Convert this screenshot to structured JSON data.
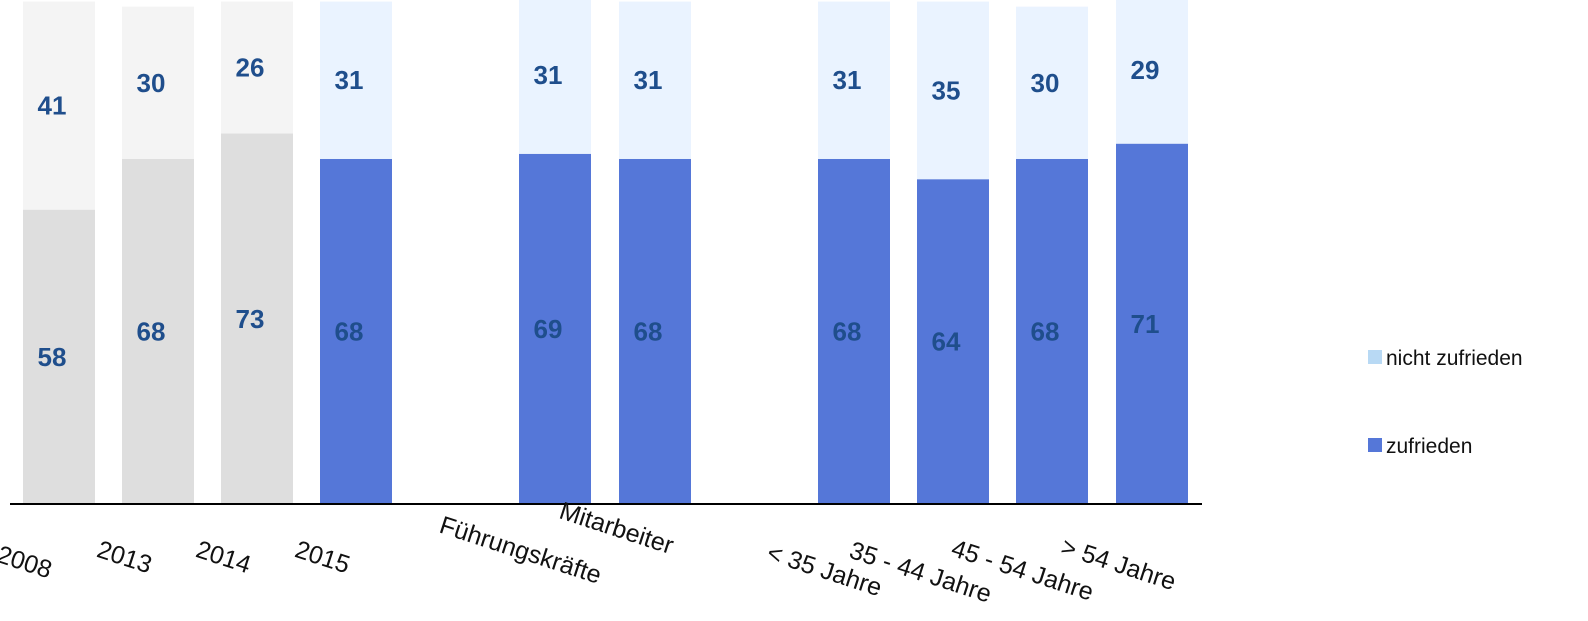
{
  "chart_data": {
    "type": "bar",
    "stacked": true,
    "orientation": "vertical",
    "categories": [
      "2008",
      "2013",
      "2014",
      "2015",
      "Führungskräfte",
      "Mitarbeiter",
      "< 35 Jahre",
      "35 - 44 Jahre",
      "45 - 54 Jahre",
      "> 54 Jahre"
    ],
    "series": [
      {
        "name": "zufrieden",
        "values": [
          58,
          68,
          73,
          68,
          69,
          68,
          68,
          64,
          68,
          71
        ]
      },
      {
        "name": "nicht zufrieden",
        "values": [
          41,
          30,
          26,
          31,
          31,
          31,
          31,
          35,
          30,
          29
        ]
      }
    ],
    "highlighted_categories": [
      "2015",
      "Führungskräfte",
      "Mitarbeiter",
      "< 35 Jahre",
      "35 - 44 Jahre",
      "45 - 54 Jahre",
      "> 54 Jahre"
    ],
    "muted_categories": [
      "2008",
      "2013",
      "2014"
    ],
    "title": "",
    "xlabel": "",
    "ylabel": "",
    "ylim": [
      0,
      100
    ],
    "grid": false,
    "legend": {
      "position": "right",
      "entries": [
        "nicht zufrieden",
        "zufrieden"
      ]
    },
    "colors": {
      "zufrieden": "#5577d8",
      "nicht zufrieden": "#eaf3ff",
      "muted_zufrieden": "#dedede",
      "muted_nicht_zufrieden": "#f4f4f4",
      "legend_nicht_zufrieden": "#b8d9f4",
      "value_text": "#1f4e8c",
      "axis": "#000000"
    }
  }
}
